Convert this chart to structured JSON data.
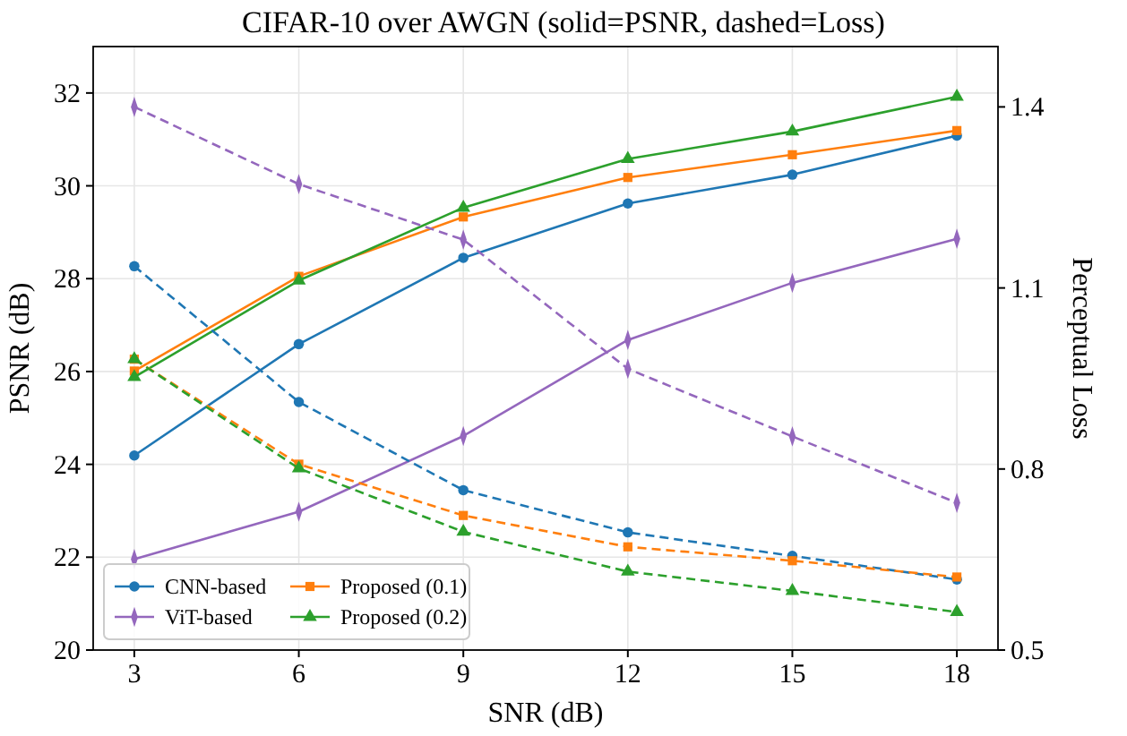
{
  "chart_data": {
    "type": "line",
    "title": "CIFAR-10 over AWGN (solid=PSNR, dashed=Loss)",
    "xlabel": "SNR (dB)",
    "ylabel": "PSNR (dB)",
    "y2label": "Perceptual Loss",
    "x": [
      3,
      6,
      9,
      12,
      15,
      18
    ],
    "xlim": [
      2.25,
      18.75
    ],
    "xticks": [
      3,
      6,
      9,
      12,
      15,
      18
    ],
    "ylim": [
      20,
      33
    ],
    "yticks": [
      20,
      22,
      24,
      26,
      28,
      30,
      32
    ],
    "y2lim": [
      0.5,
      1.5
    ],
    "y2ticks": [
      0.5,
      0.8,
      1.1,
      1.4
    ],
    "grid": true,
    "legend": "bottom left",
    "series": [
      {
        "name": "CNN-based",
        "color": "#1f77b4",
        "marker": "circle",
        "line_style": "solid",
        "values": [
          24.19,
          26.59,
          28.45,
          29.62,
          30.24,
          31.08
        ]
      },
      {
        "name": "Proposed (0.1)",
        "color": "#ff7f0e",
        "marker": "square",
        "line_style": "solid",
        "values": [
          26.01,
          28.05,
          29.33,
          30.18,
          30.67,
          31.19
        ]
      },
      {
        "name": "ViT-based",
        "color": "#9467bd",
        "marker": "diamond",
        "line_style": "solid",
        "values": [
          21.96,
          22.98,
          24.61,
          26.68,
          27.91,
          28.86
        ]
      },
      {
        "name": "Proposed (0.2)",
        "color": "#2ca02c",
        "marker": "triangle",
        "line_style": "solid",
        "values": [
          25.88,
          27.96,
          29.53,
          30.58,
          31.17,
          31.92
        ]
      },
      {
        "color": "#1f77b4",
        "marker": "circle",
        "line_style": "dashed",
        "axis": "y2",
        "values": [
          1.136,
          0.911,
          0.765,
          0.695,
          0.656,
          0.617
        ]
      },
      {
        "color": "#ff7f0e",
        "marker": "square",
        "line_style": "dashed",
        "axis": "y2",
        "values": [
          0.982,
          0.808,
          0.723,
          0.671,
          0.648,
          0.621
        ]
      },
      {
        "color": "#2ca02c",
        "marker": "triangle",
        "line_style": "dashed",
        "axis": "y2",
        "values": [
          0.982,
          0.801,
          0.696,
          0.63,
          0.598,
          0.563
        ]
      },
      {
        "color": "#9467bd",
        "marker": "diamond",
        "line_style": "dashed",
        "axis": "y2",
        "values": [
          1.4,
          1.272,
          1.18,
          0.966,
          0.854,
          0.744
        ]
      }
    ]
  }
}
